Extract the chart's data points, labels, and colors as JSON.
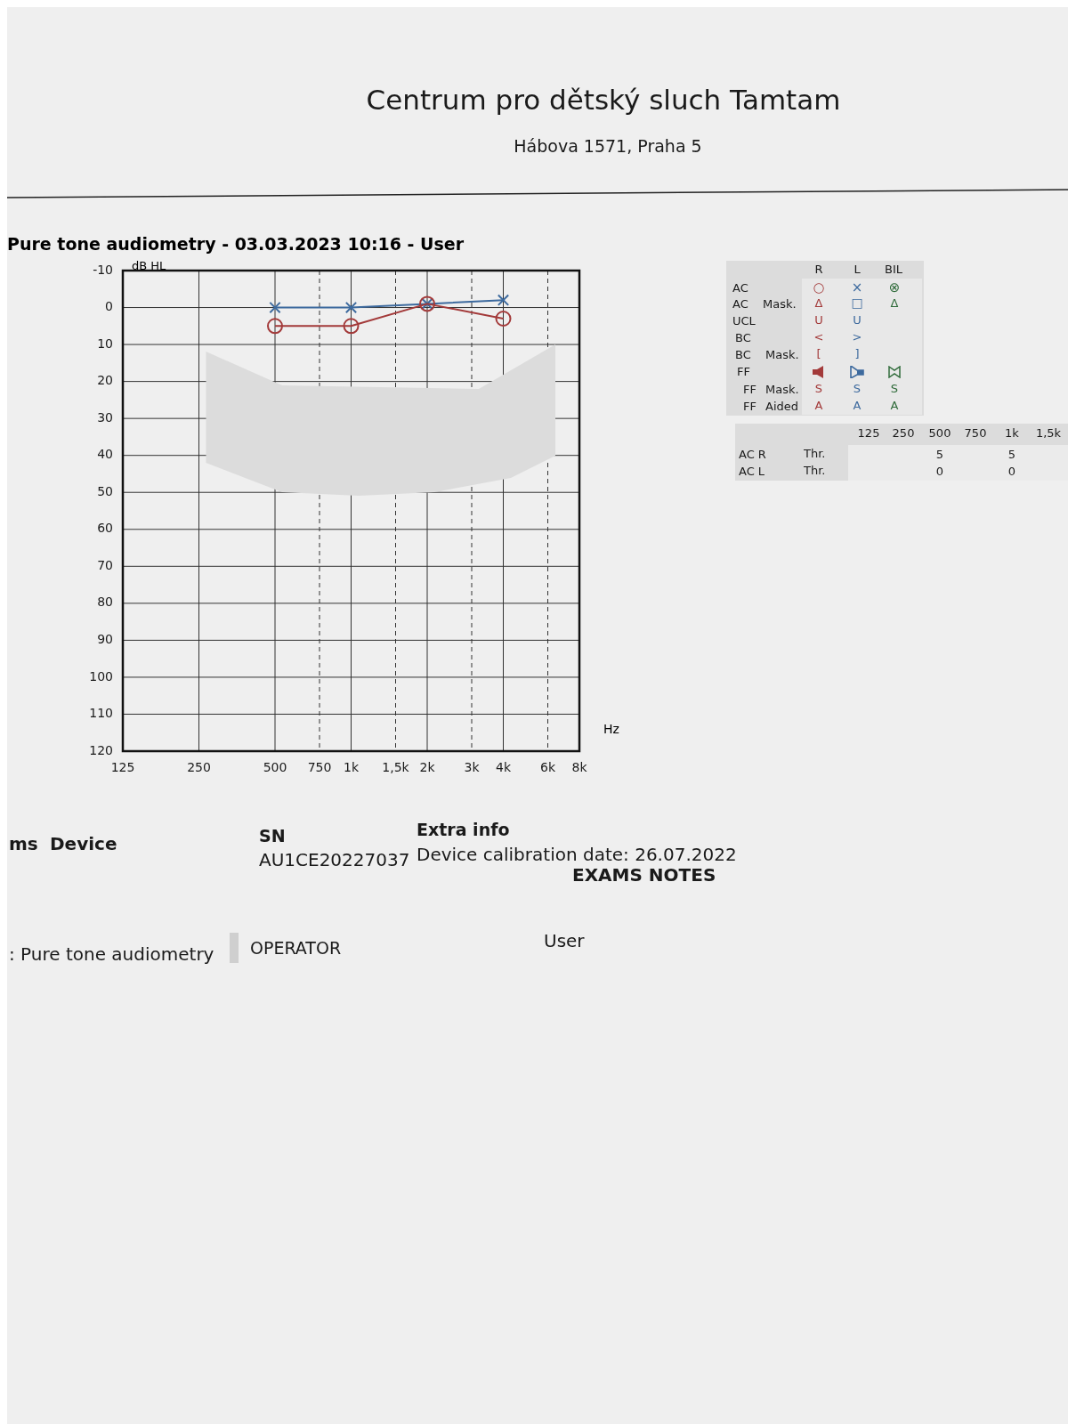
{
  "chart_data": {
    "type": "line",
    "title": "Pure tone audiometry - 03.03.2023 10:16 - User",
    "xlabel": "Hz",
    "ylabel": "dB HL",
    "log": "x",
    "grid": true,
    "legend": false,
    "x": [
      500,
      1000,
      2000,
      4000
    ],
    "xlim": [
      125,
      8000
    ],
    "xticks": [
      125,
      250,
      500,
      750,
      {
        "value": 1000,
        "label": "1k"
      },
      {
        "value": 1500,
        "label": "1,5k"
      },
      {
        "value": 2000,
        "label": "2k"
      },
      {
        "value": 3000,
        "label": "3k"
      },
      {
        "value": 4000,
        "label": "4k"
      },
      {
        "value": 6000,
        "label": "6k"
      },
      {
        "value": 8000,
        "label": "8k"
      }
    ],
    "ylim": [
      120,
      -10
    ],
    "yticks": [
      -10,
      0,
      10,
      20,
      30,
      40,
      50,
      60,
      70,
      80,
      90,
      100,
      110,
      120
    ],
    "series": [
      {
        "color": "#a33a3a",
        "marker": "circle",
        "values": [
          5,
          5,
          -1,
          3
        ]
      },
      {
        "color": "#3d6a9e",
        "marker": "cross",
        "values": [
          0,
          0,
          -1,
          -2
        ]
      }
    ],
    "annotations": [
      "Centrum pro dětský sluch Tamtam",
      "Hábova 1571, Praha 5",
      "ms",
      "Device",
      "SN",
      "AU1CE20227037",
      "Extra info",
      "Device calibration date: 26.07.2022",
      "EXAMS NOTES",
      ": Pure tone audiometry",
      "OPERATOR",
      "User",
      "R",
      "L",
      "BIL",
      "AC",
      "○",
      "×",
      "⊗",
      "AC",
      "Mask.",
      "Δ",
      "□",
      "Δ",
      "UCL",
      "U",
      "U",
      "BC",
      "<",
      ">",
      "BC",
      "Mask.",
      "[",
      "]",
      "FF",
      "FF",
      "Mask.",
      "S",
      "S",
      "S",
      "FF",
      "Aided",
      "A",
      "A",
      "A",
      "AC R",
      "Thr.",
      "AC L",
      "Thr.",
      "125",
      "250",
      "500",
      "750",
      "1k",
      "1,5k",
      "5",
      "5",
      "0",
      "0"
    ]
  }
}
